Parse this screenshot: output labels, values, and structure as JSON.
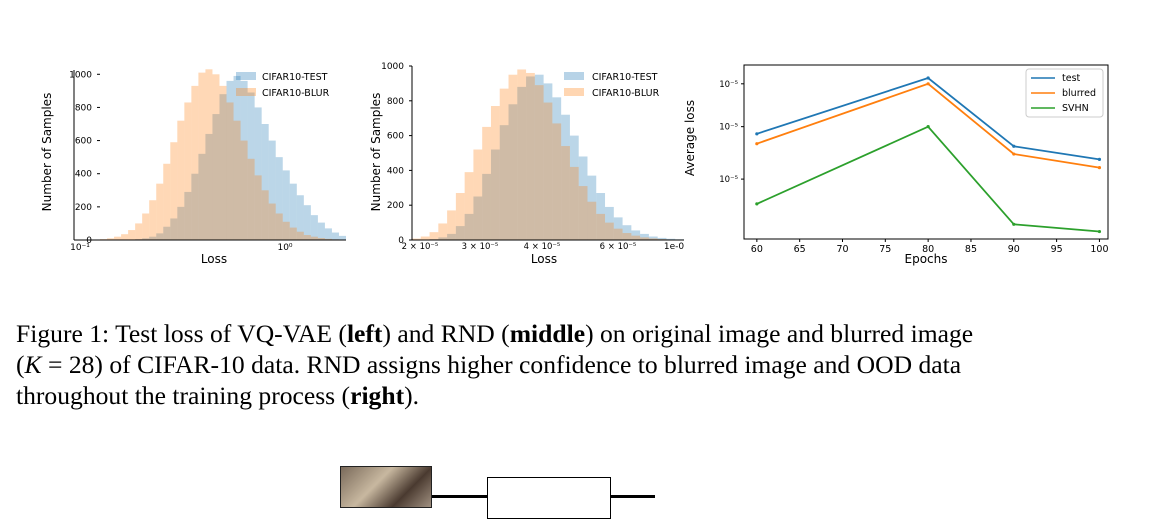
{
  "charts": [
    {
      "legend": [
        "CIFAR10-TEST",
        "CIFAR10-BLUR"
      ],
      "xlabel": "Loss",
      "ylabel": "Number of Samples",
      "xticks": [
        "10⁻¹",
        "10⁰"
      ],
      "yticks": [
        "0",
        "200",
        "400",
        "600",
        "800",
        "1000"
      ]
    },
    {
      "legend": [
        "CIFAR10-TEST",
        "CIFAR10-BLUR"
      ],
      "xlabel": "Loss",
      "ylabel": "Number of Samples",
      "xticks": [
        "2 × 10⁻⁵",
        "3 × 10⁻⁵",
        "4 × 10⁻⁵",
        "6 × 10⁻⁵",
        "1e-0"
      ],
      "yticks": [
        "0",
        "200",
        "400",
        "600",
        "800",
        "1000"
      ]
    },
    {
      "legend": [
        "test",
        "blurred",
        "SVHN"
      ],
      "xlabel": "Epochs",
      "ylabel": "Average loss",
      "xticks": [
        "60",
        "65",
        "70",
        "75",
        "80",
        "85",
        "90",
        "95",
        "100"
      ],
      "yticks": [
        "4 × 10⁻⁵",
        "5 × 10⁻⁵",
        "6 × 10⁻⁵"
      ]
    }
  ],
  "chart_data": [
    {
      "type": "bar",
      "xscale": "log",
      "series": [
        {
          "name": "CIFAR10-TEST",
          "color": "#1f77b4",
          "values": [
            0,
            0,
            0,
            0,
            2,
            5,
            10,
            20,
            40,
            80,
            130,
            200,
            290,
            400,
            520,
            640,
            760,
            880,
            960,
            990,
            960,
            890,
            800,
            700,
            600,
            500,
            420,
            340,
            270,
            210,
            150,
            105,
            70,
            45,
            25
          ]
        },
        {
          "name": "CIFAR10-BLUR",
          "color": "#ff7f0e",
          "values": [
            5,
            10,
            20,
            35,
            60,
            100,
            160,
            240,
            340,
            460,
            590,
            720,
            830,
            930,
            1010,
            1030,
            1000,
            930,
            830,
            720,
            600,
            490,
            390,
            300,
            220,
            160,
            110,
            75,
            50,
            30,
            20,
            12,
            7,
            4,
            2
          ]
        }
      ]
    },
    {
      "type": "bar",
      "xscale": "log",
      "series": [
        {
          "name": "CIFAR10-TEST",
          "color": "#1f77b4",
          "values": [
            0,
            2,
            5,
            15,
            35,
            80,
            150,
            250,
            380,
            520,
            660,
            780,
            880,
            940,
            950,
            900,
            820,
            720,
            600,
            480,
            370,
            270,
            190,
            130,
            85,
            55,
            35,
            20,
            12,
            7,
            4
          ]
        },
        {
          "name": "CIFAR10-BLUR",
          "color": "#ff7f0e",
          "values": [
            8,
            20,
            45,
            95,
            170,
            270,
            390,
            520,
            650,
            770,
            870,
            950,
            980,
            960,
            890,
            790,
            670,
            540,
            420,
            310,
            220,
            150,
            100,
            65,
            40,
            25,
            15,
            9,
            5,
            3,
            2
          ]
        }
      ]
    },
    {
      "type": "line",
      "yscale": "log",
      "x": [
        60,
        80,
        90,
        100
      ],
      "ylim": [
        3.1e-05,
        6.5e-05
      ],
      "xlim": [
        58.5,
        101
      ],
      "series": [
        {
          "name": "test",
          "color": "#1f77b4",
          "values": [
            4.85e-05,
            6.15e-05,
            4.6e-05,
            4.35e-05
          ]
        },
        {
          "name": "blurred",
          "color": "#ff7f0e",
          "values": [
            4.65e-05,
            6e-05,
            4.45e-05,
            4.2e-05
          ]
        },
        {
          "name": "SVHN",
          "color": "#2ca02c",
          "values": [
            3.6e-05,
            5e-05,
            3.3e-05,
            3.2e-05
          ]
        }
      ]
    }
  ],
  "caption": {
    "line1_prefix": "Figure 1:  Test loss of VQ-VAE (",
    "line1_bold1": "left",
    "line1_mid": ") and RND (",
    "line1_bold2": "middle",
    "line1_suffix": ") on original image and blurred image",
    "line2_prefix": "(",
    "line2_var": "K",
    "line2_rest": " = 28) of CIFAR-10 data.  RND assigns higher confidence to blurred image and OOD data",
    "line3_prefix": "throughout the training process (",
    "line3_bold": "right",
    "line3_suffix": ")."
  }
}
